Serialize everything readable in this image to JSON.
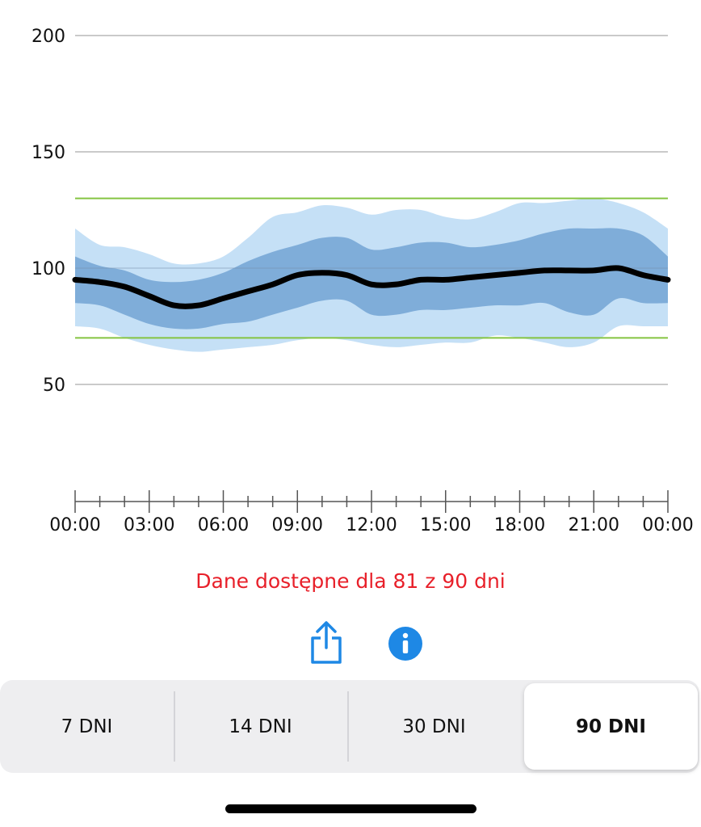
{
  "chart_data": {
    "type": "area",
    "ylim": [
      0,
      200
    ],
    "yticks": [
      50,
      100,
      150,
      200
    ],
    "target_range": [
      70,
      130
    ],
    "xlabels": [
      "00:00",
      "03:00",
      "06:00",
      "09:00",
      "12:00",
      "15:00",
      "18:00",
      "21:00",
      "00:00"
    ],
    "x": [
      0,
      1,
      2,
      3,
      4,
      5,
      6,
      7,
      8,
      9,
      10,
      11,
      12,
      13,
      14,
      15,
      16,
      17,
      18,
      19,
      20,
      21,
      22,
      23,
      24
    ],
    "median": [
      95,
      94,
      92,
      88,
      84,
      84,
      87,
      90,
      93,
      97,
      98,
      97,
      93,
      93,
      95,
      95,
      96,
      97,
      98,
      99,
      99,
      99,
      100,
      97,
      95
    ],
    "p25": [
      85,
      84,
      80,
      76,
      74,
      74,
      76,
      77,
      80,
      83,
      86,
      86,
      80,
      80,
      82,
      82,
      83,
      84,
      84,
      85,
      81,
      80,
      87,
      85,
      85
    ],
    "p75": [
      105,
      101,
      99,
      95,
      94,
      95,
      98,
      103,
      107,
      110,
      113,
      113,
      108,
      109,
      111,
      111,
      109,
      110,
      112,
      115,
      117,
      117,
      117,
      114,
      105
    ],
    "p10": [
      75,
      74,
      70,
      67,
      65,
      64,
      65,
      66,
      67,
      69,
      70,
      69,
      67,
      66,
      67,
      68,
      68,
      71,
      70,
      68,
      66,
      68,
      75,
      75,
      75
    ],
    "p90": [
      117,
      110,
      109,
      106,
      102,
      102,
      105,
      113,
      122,
      124,
      127,
      126,
      123,
      125,
      125,
      122,
      121,
      124,
      128,
      128,
      129,
      130,
      128,
      124,
      117
    ],
    "colors": {
      "outer_band": "#c5e0f6",
      "inner_band": "#7fadd9",
      "median": "#000000",
      "target_lines": "#85c441",
      "grid": "#b8b8b8"
    }
  },
  "status_text": "Dane dostępne dla 81 z 90 dni",
  "actions": {
    "share_icon": "share-icon",
    "info_icon": "info-icon",
    "accent": "#1e88e5"
  },
  "period_selector": {
    "options": [
      "7 DNI",
      "14 DNI",
      "30 DNI",
      "90 DNI"
    ],
    "selected": "90 DNI"
  }
}
